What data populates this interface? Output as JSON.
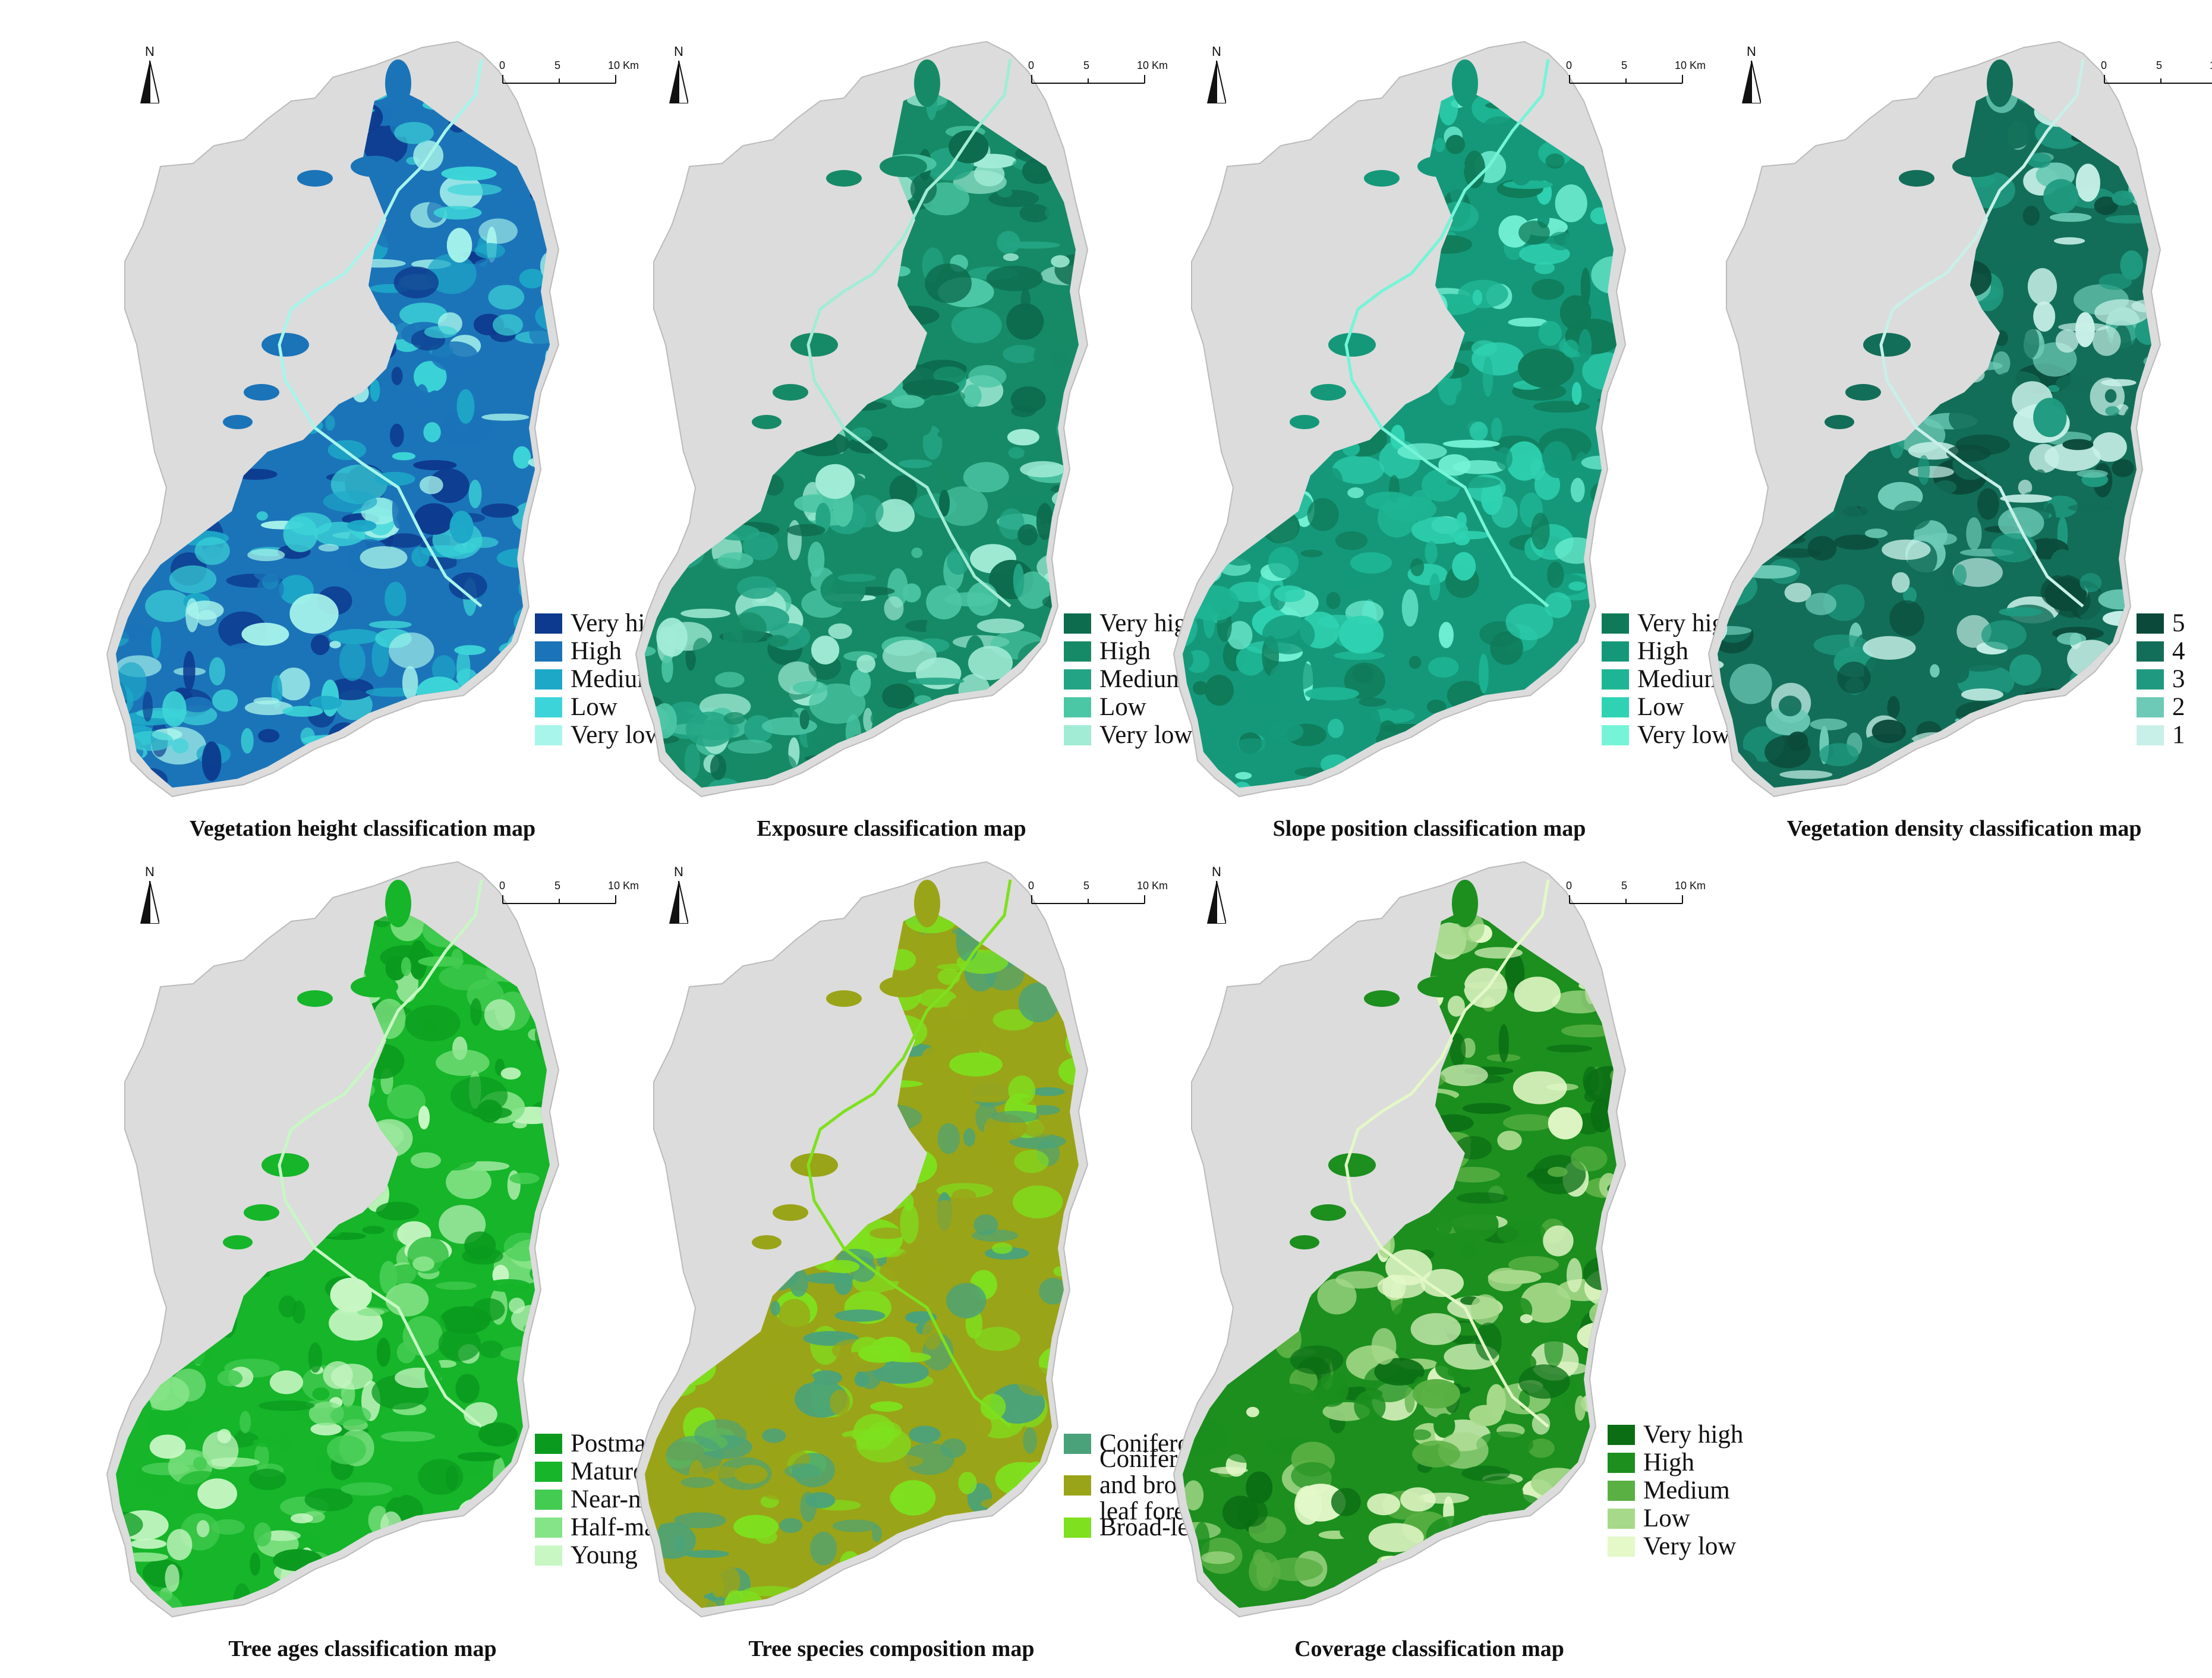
{
  "north_label": "N",
  "scale": {
    "ticks": [
      "0",
      "5",
      "10 Km"
    ]
  },
  "colors": {
    "background_region": "#dcdcdc"
  },
  "panels": [
    {
      "caption": "Vegetation height classification map",
      "legend": [
        {
          "label": "Very high",
          "color": "#0d3a8e"
        },
        {
          "label": "High",
          "color": "#1b74b8"
        },
        {
          "label": "Medium",
          "color": "#1da8c8"
        },
        {
          "label": "Low",
          "color": "#3cd4d8"
        },
        {
          "label": "Very low",
          "color": "#a8f5ec"
        }
      ]
    },
    {
      "caption": "Exposure classification map",
      "legend": [
        {
          "label": "Very high",
          "color": "#0d6b4e"
        },
        {
          "label": "High",
          "color": "#168a66"
        },
        {
          "label": "Medium",
          "color": "#23a585"
        },
        {
          "label": "Low",
          "color": "#4cc7a6"
        },
        {
          "label": "Very low",
          "color": "#a2ecd6"
        }
      ]
    },
    {
      "caption": "Slope position classification map",
      "legend": [
        {
          "label": "Very high",
          "color": "#0f7a58"
        },
        {
          "label": "High",
          "color": "#15987a"
        },
        {
          "label": "Medium",
          "color": "#1eb594"
        },
        {
          "label": "Low",
          "color": "#2fd2b2"
        },
        {
          "label": "Very low",
          "color": "#76f4d8"
        }
      ]
    },
    {
      "caption": "Vegetation density classification map",
      "legend": [
        {
          "label": "5",
          "color": "#0b4a3a"
        },
        {
          "label": "4",
          "color": "#126e58"
        },
        {
          "label": "3",
          "color": "#1f9a80"
        },
        {
          "label": "2",
          "color": "#6ccab6"
        },
        {
          "label": "1",
          "color": "#c8f0e8"
        }
      ]
    },
    {
      "caption": "Tree ages classification map",
      "legend": [
        {
          "label": "Postmature",
          "color": "#0a9a1e"
        },
        {
          "label": "Mature",
          "color": "#16b52a"
        },
        {
          "label": "Near-mature",
          "color": "#44cc52"
        },
        {
          "label": "Half-mature",
          "color": "#86e488"
        },
        {
          "label": "Young",
          "color": "#c8f7c4"
        }
      ]
    },
    {
      "caption": "Tree species composition map",
      "legend": [
        {
          "label": "Coniferous forest",
          "color": "#4aa27a"
        },
        {
          "label": "Coniferous and broad-leaf forest",
          "color": "#9aa418"
        },
        {
          "label": "Broad-leaf forest",
          "color": "#7ee01e"
        }
      ]
    },
    {
      "caption": "Coverage classification map",
      "legend": [
        {
          "label": "Very high",
          "color": "#0b6e14"
        },
        {
          "label": "High",
          "color": "#1c8f1e"
        },
        {
          "label": "Medium",
          "color": "#5ab043"
        },
        {
          "label": "Low",
          "color": "#a6d98a"
        },
        {
          "label": "Very low",
          "color": "#e4f8c8"
        }
      ]
    }
  ]
}
